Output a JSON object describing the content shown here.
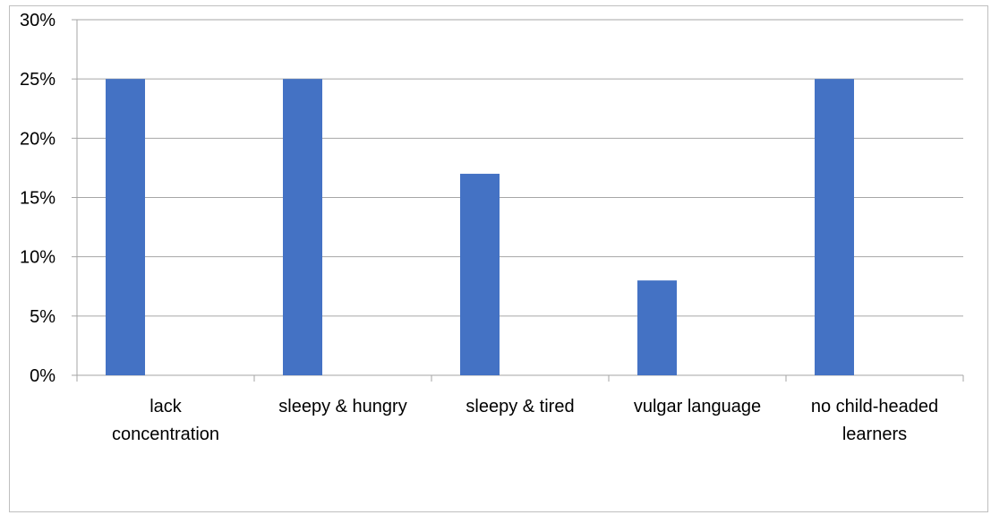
{
  "chart_data": {
    "type": "bar",
    "categories": [
      [
        "lack",
        "concentration"
      ],
      [
        "sleepy & hungry"
      ],
      [
        "sleepy & tired"
      ],
      [
        "vulgar language"
      ],
      [
        "no child-headed",
        "learners"
      ]
    ],
    "values": [
      25,
      25,
      17,
      8,
      25
    ],
    "y_tick_labels": [
      "0%",
      "5%",
      "10%",
      "15%",
      "20%",
      "25%",
      "30%"
    ],
    "ylim": [
      0,
      30
    ],
    "y_unit": "%",
    "grid": true,
    "legend": "none",
    "bar_color": "#4472C4",
    "grid_color": "#a6a6a6",
    "axis_color": "#a6a6a6"
  }
}
